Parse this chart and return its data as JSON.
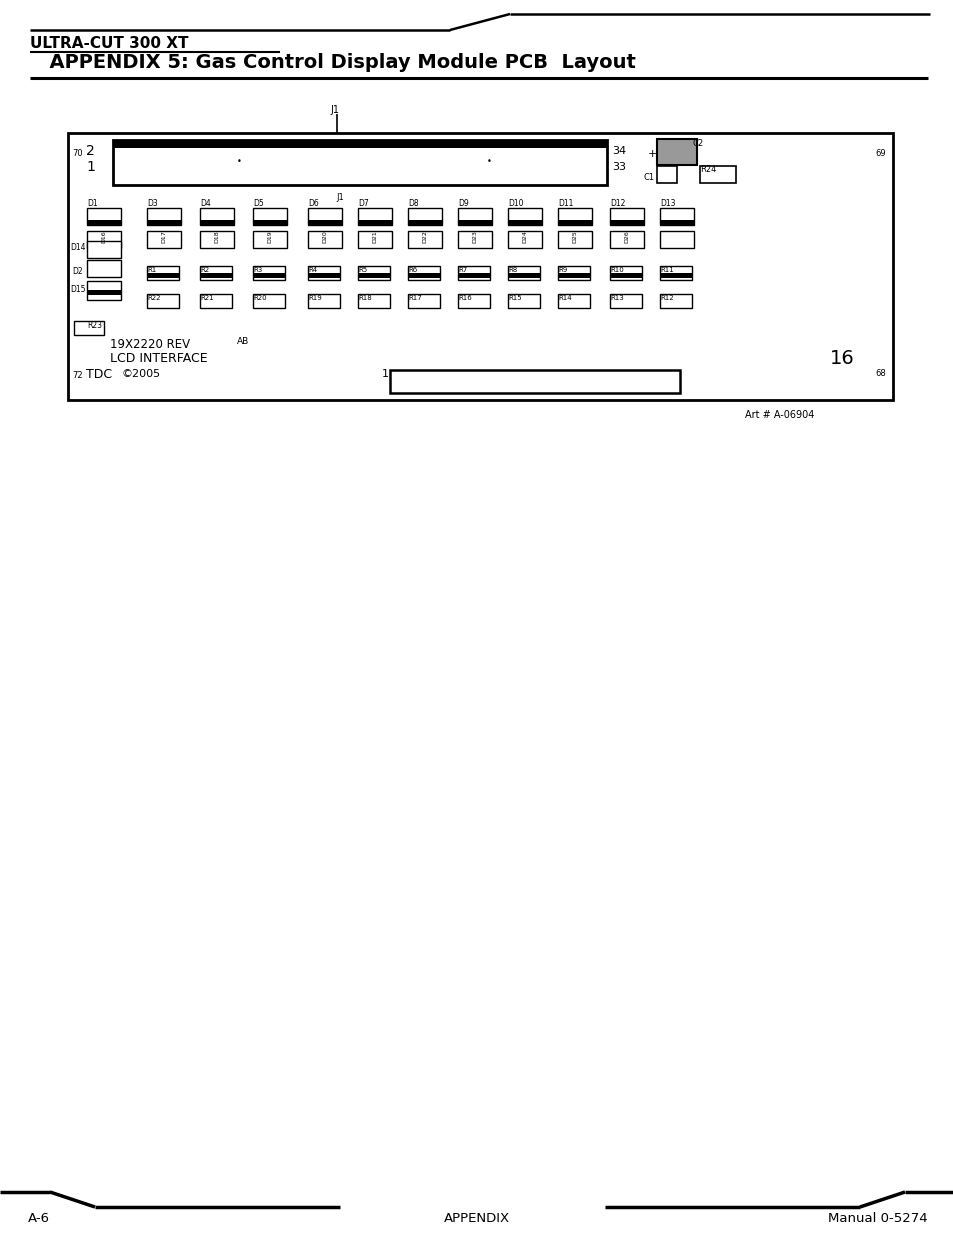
{
  "title_top": "ULTRA-CUT 300 XT",
  "title_main": "  APPENDIX 5: Gas Control Display Module PCB  Layout",
  "background_color": "#ffffff",
  "text_color": "#000000",
  "footer_left": "A-6",
  "footer_center": "APPENDIX",
  "footer_right": "Manual 0-5274",
  "art_number": "Art # A-06904"
}
